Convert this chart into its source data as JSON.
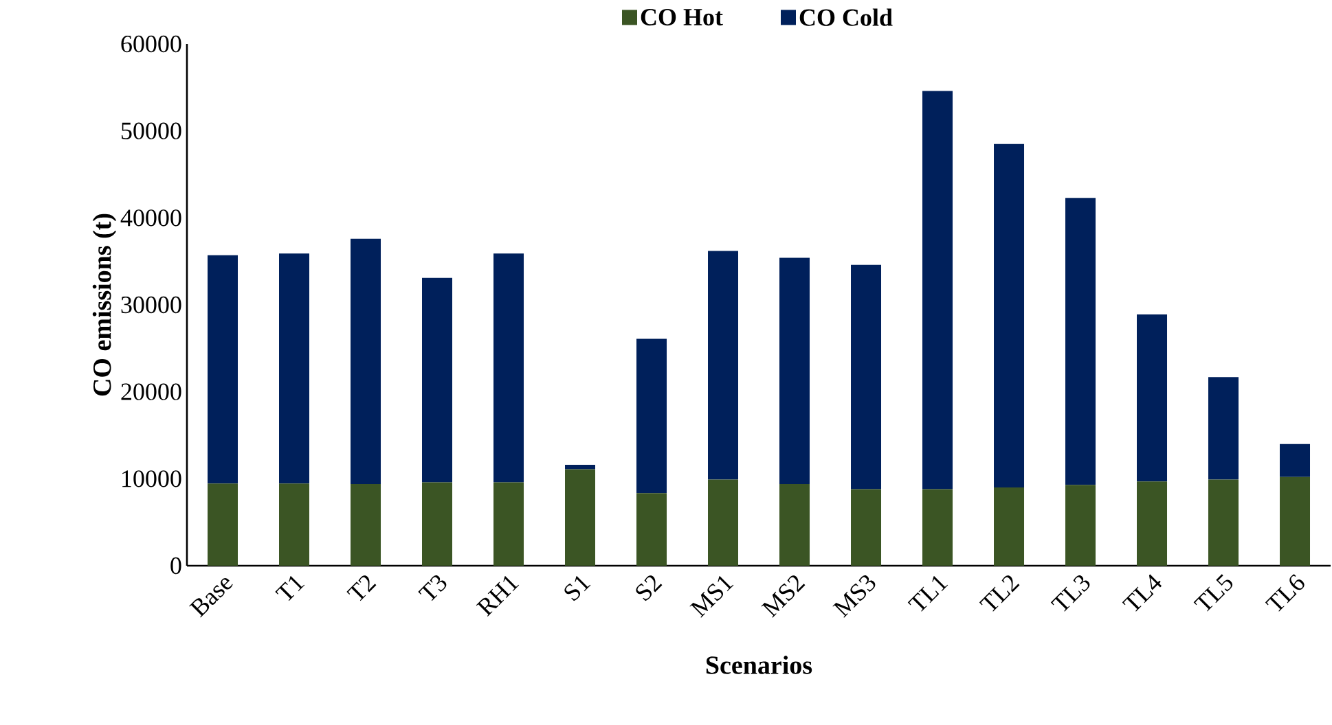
{
  "chart_data": {
    "type": "bar",
    "stacked": true,
    "xlabel": "Scenarios",
    "ylabel": "CO emissions (t)",
    "categories": [
      "Base",
      "T1",
      "T2",
      "T3",
      "RH1",
      "S1",
      "S2",
      "MS1",
      "MS2",
      "MS3",
      "TL1",
      "TL2",
      "TL3",
      "TL4",
      "TL5",
      "TL6"
    ],
    "series": [
      {
        "name": "CO Hot",
        "color": "#3b5524",
        "values": [
          9450,
          9450,
          9400,
          9600,
          9600,
          11100,
          8350,
          9900,
          9400,
          8800,
          8800,
          9000,
          9300,
          9700,
          9900,
          10200
        ]
      },
      {
        "name": "CO Cold",
        "color": "#00205b",
        "values": [
          26250,
          26450,
          28200,
          23500,
          26300,
          500,
          17750,
          26300,
          26000,
          25800,
          45800,
          39500,
          33000,
          19200,
          11800,
          3800
        ]
      }
    ],
    "ylim": [
      0,
      60000
    ],
    "yticks": [
      0,
      10000,
      20000,
      30000,
      40000,
      50000,
      60000
    ],
    "grid": false,
    "legend": "top"
  }
}
